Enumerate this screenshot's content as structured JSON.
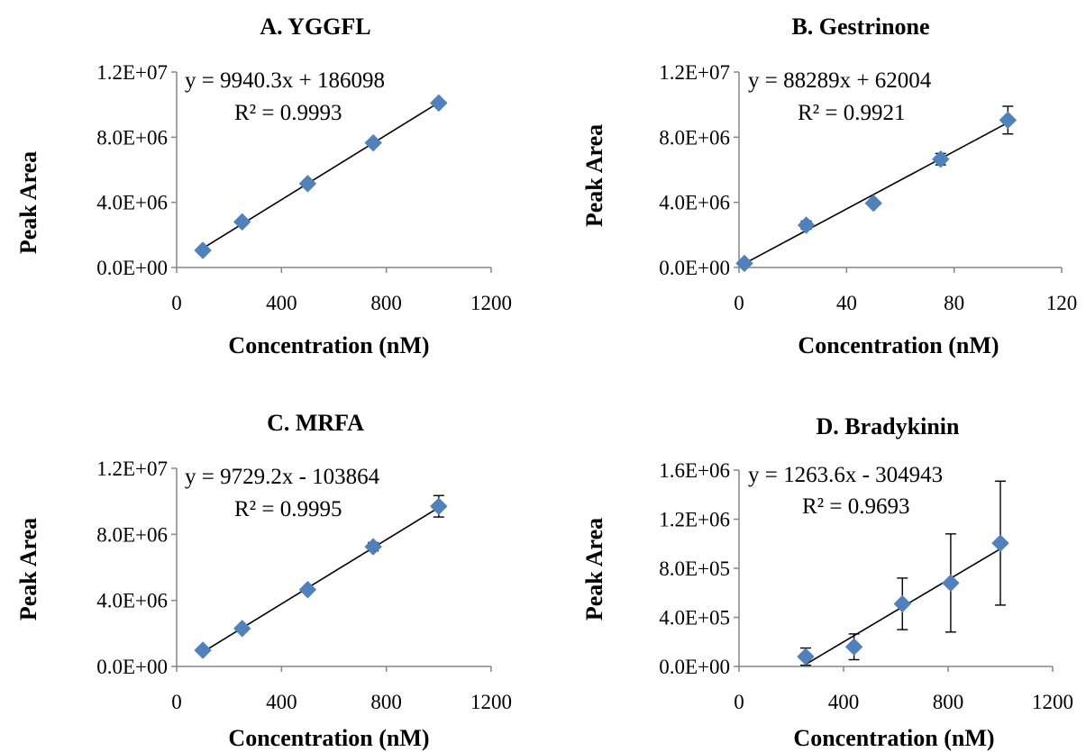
{
  "colors": {
    "marker": "#4F81BD",
    "trendline": "#000000",
    "axis": "#868686"
  },
  "chart_data": [
    {
      "type": "scatter",
      "title": "A. YGGFL",
      "xlabel": "Concentration (nM)",
      "ylabel": "Peak Area",
      "xlim": [
        0,
        1200
      ],
      "ylim": [
        0,
        12000000
      ],
      "xticks": [
        0,
        400,
        800,
        1200
      ],
      "xtick_labels": [
        "0",
        "400",
        "800",
        "1200"
      ],
      "yticks": [
        0,
        4000000,
        8000000,
        12000000
      ],
      "ytick_labels": [
        "0.0E+00",
        "4.0E+06",
        "8.0E+06",
        "1.2E+07"
      ],
      "x": [
        100,
        250,
        500,
        750,
        1000
      ],
      "y": [
        1050000,
        2800000,
        5150000,
        7650000,
        10100000
      ],
      "yerr": [
        0,
        0,
        0,
        0,
        0
      ],
      "trendline": {
        "slope": 9940.3,
        "intercept": 186098
      },
      "equation": "y = 9940.3x + 186098",
      "r2": "R² = 0.9993"
    },
    {
      "type": "scatter",
      "title": "B. Gestrinone",
      "xlabel": "Concentration (nM)",
      "ylabel": "Peak Area",
      "xlim": [
        0,
        120
      ],
      "ylim": [
        0,
        12000000
      ],
      "xticks": [
        0,
        40,
        80,
        120
      ],
      "xtick_labels": [
        "0",
        "40",
        "80",
        "120"
      ],
      "yticks": [
        0,
        4000000,
        8000000,
        12000000
      ],
      "ytick_labels": [
        "0.0E+00",
        "4.0E+06",
        "8.0E+06",
        "1.2E+07"
      ],
      "x": [
        2,
        25,
        50,
        75,
        100
      ],
      "y": [
        250000,
        2600000,
        3950000,
        6650000,
        9050000
      ],
      "yerr": [
        0,
        250000,
        100000,
        350000,
        850000
      ],
      "trendline": {
        "slope": 88289,
        "intercept": 62004
      },
      "equation": "y = 88289x + 62004",
      "r2": "R² = 0.9921"
    },
    {
      "type": "scatter",
      "title": "C. MRFA",
      "xlabel": "Concentration (nM)",
      "ylabel": "Peak Area",
      "xlim": [
        0,
        1200
      ],
      "ylim": [
        0,
        12000000
      ],
      "xticks": [
        0,
        400,
        800,
        1200
      ],
      "xtick_labels": [
        "0",
        "400",
        "800",
        "1200"
      ],
      "yticks": [
        0,
        4000000,
        8000000,
        12000000
      ],
      "ytick_labels": [
        "0.0E+00",
        "4.0E+06",
        "8.0E+06",
        "1.2E+07"
      ],
      "x": [
        100,
        250,
        500,
        750,
        1000
      ],
      "y": [
        980000,
        2300000,
        4650000,
        7250000,
        9700000
      ],
      "yerr": [
        0,
        0,
        150000,
        250000,
        650000
      ],
      "trendline": {
        "slope": 9729.2,
        "intercept": -103864
      },
      "equation": "y = 9729.2x - 103864",
      "r2": "R² = 0.9995"
    },
    {
      "type": "scatter",
      "title": "D. Bradykinin",
      "xlabel": "Concentration (nM)",
      "ylabel": "Peak Area",
      "xlim": [
        0,
        1200
      ],
      "ylim": [
        0,
        1600000
      ],
      "xticks": [
        0,
        400,
        800,
        1200
      ],
      "xtick_labels": [
        "0",
        "400",
        "800",
        "1200"
      ],
      "yticks": [
        0,
        400000,
        800000,
        1200000,
        1600000
      ],
      "ytick_labels": [
        "0.0E+00",
        "4.0E+05",
        "8.0E+05",
        "1.2E+06",
        "1.6E+06"
      ],
      "x": [
        255,
        440,
        625,
        810,
        1000
      ],
      "y": [
        80000,
        160000,
        510000,
        680000,
        1005000
      ],
      "yerr": [
        70000,
        105000,
        210000,
        400000,
        505000
      ],
      "trendline": {
        "slope": 1263.6,
        "intercept": -304943
      },
      "equation": "y = 1263.6x - 304943",
      "r2": "R² = 0.9693"
    }
  ]
}
